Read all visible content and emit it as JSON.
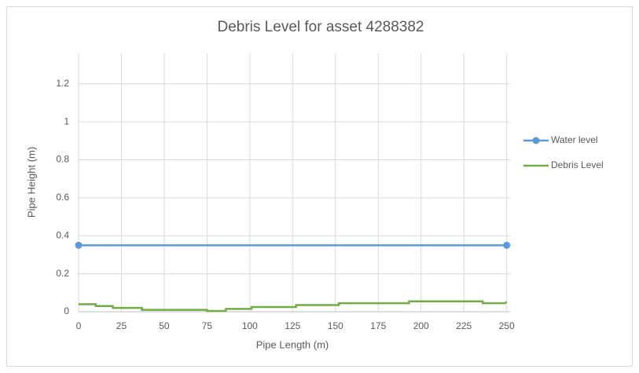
{
  "chart_data": {
    "type": "line",
    "title": "Debris Level for asset 4288382",
    "x_label": "Pipe Length (m)",
    "y_label": "Pipe Height (m)",
    "xlim": [
      0,
      252
    ],
    "xticks": [
      0,
      25,
      50,
      75,
      100,
      125,
      150,
      175,
      200,
      225,
      250
    ],
    "ylim": [
      0,
      1.36
    ],
    "yticks": [
      0,
      0.2,
      0.4,
      0.6,
      0.8,
      1,
      1.2
    ],
    "grid": true,
    "legend": "right",
    "series": [
      {
        "name": "Water level",
        "color": "#5b9bd5",
        "markers": true,
        "x": [
          0,
          250
        ],
        "values": [
          0.35,
          0.35
        ]
      },
      {
        "name": "Debris Level",
        "color": "#70ad47",
        "markers": false,
        "x": [
          0,
          10,
          10,
          20,
          20,
          37,
          37,
          75,
          75,
          86,
          86,
          101,
          101,
          127,
          127,
          152,
          152,
          193,
          193,
          236,
          236,
          249,
          250
        ],
        "values": [
          0.04,
          0.04,
          0.03,
          0.03,
          0.02,
          0.02,
          0.01,
          0.01,
          0.004,
          0.004,
          0.015,
          0.015,
          0.025,
          0.025,
          0.035,
          0.035,
          0.045,
          0.045,
          0.055,
          0.055,
          0.045,
          0.045,
          0.052
        ]
      }
    ]
  }
}
